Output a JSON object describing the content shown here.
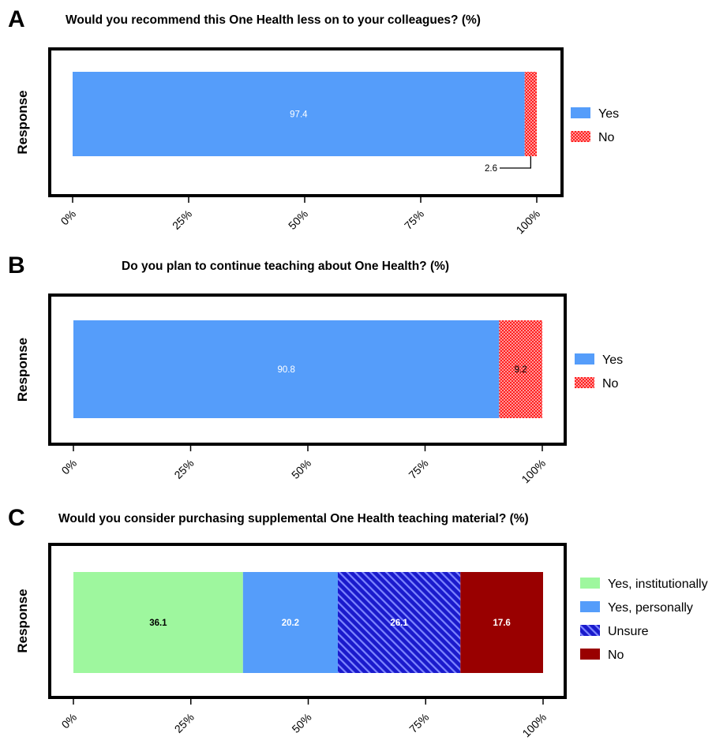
{
  "chart_data": [
    {
      "panel": "A",
      "type": "bar",
      "orientation": "horizontal",
      "stacked": true,
      "title": "Would you recommend this One Health less on to your colleagues? (%)",
      "ylabel": "Response",
      "xlim": [
        0,
        100
      ],
      "xticks": [
        "0%",
        "25%",
        "50%",
        "75%",
        "100%"
      ],
      "legend_position": "right",
      "series": [
        {
          "name": "Yes",
          "value": 97.4,
          "label": "97.4",
          "color": "#559dfa",
          "pattern": "solid"
        },
        {
          "name": "No",
          "value": 2.6,
          "label": "2.6",
          "color": "#ff1e1e",
          "pattern": "checker"
        }
      ]
    },
    {
      "panel": "B",
      "type": "bar",
      "orientation": "horizontal",
      "stacked": true,
      "title": "Do you plan to continue teaching about One Health? (%)",
      "ylabel": "Response",
      "xlim": [
        0,
        100
      ],
      "xticks": [
        "0%",
        "25%",
        "50%",
        "75%",
        "100%"
      ],
      "legend_position": "right",
      "series": [
        {
          "name": "Yes",
          "value": 90.8,
          "label": "90.8",
          "color": "#559dfa",
          "pattern": "solid"
        },
        {
          "name": "No",
          "value": 9.2,
          "label": "9.2",
          "color": "#ff1e1e",
          "pattern": "checker"
        }
      ]
    },
    {
      "panel": "C",
      "type": "bar",
      "orientation": "horizontal",
      "stacked": true,
      "title": "Would you consider purchasing supplemental One Health teaching material? (%)",
      "ylabel": "Response",
      "xlim": [
        0,
        100
      ],
      "xticks": [
        "0%",
        "25%",
        "50%",
        "75%",
        "100%"
      ],
      "legend_position": "right",
      "series": [
        {
          "name": "Yes, institutionally",
          "value": 36.1,
          "label": "36.1",
          "color": "#9ef79e",
          "pattern": "solid"
        },
        {
          "name": "Yes, personally",
          "value": 20.2,
          "label": "20.2",
          "color": "#559dfa",
          "pattern": "solid"
        },
        {
          "name": "Unsure",
          "value": 26.1,
          "label": "26.1",
          "color": "#1a1acc",
          "pattern": "stripes"
        },
        {
          "name": "No",
          "value": 17.6,
          "label": "17.6",
          "color": "#990000",
          "pattern": "solid"
        }
      ]
    }
  ]
}
